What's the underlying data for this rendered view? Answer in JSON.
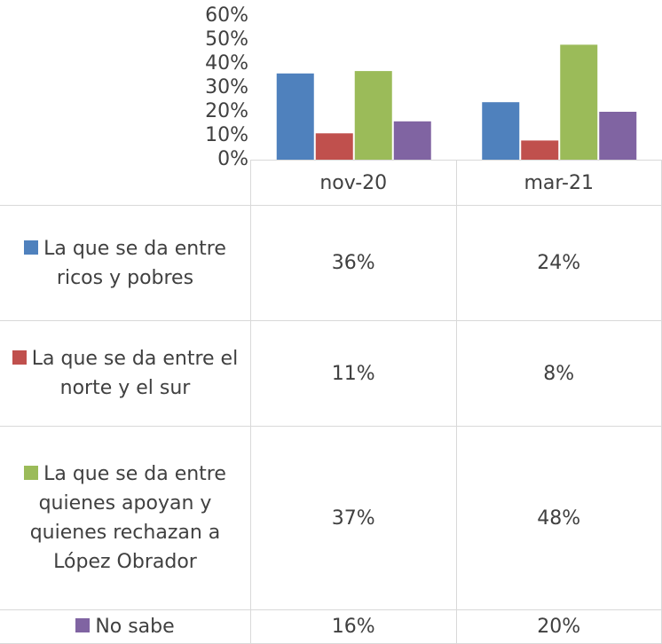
{
  "chart_data": {
    "type": "bar",
    "categories": [
      "nov-20",
      "mar-21"
    ],
    "series": [
      {
        "name": "La que se da entre ricos y pobres",
        "color": "#4f81bd",
        "values": [
          36,
          24
        ],
        "value_labels": [
          "36%",
          "24%"
        ]
      },
      {
        "name": "La que se da entre el norte y el sur",
        "color": "#c0504d",
        "values": [
          11,
          8
        ],
        "value_labels": [
          "11%",
          "8%"
        ]
      },
      {
        "name": "La que se da entre quienes apoyan y quienes rechazan a López Obrador",
        "color": "#9bbb59",
        "values": [
          37,
          48
        ],
        "value_labels": [
          "37%",
          "48%"
        ]
      },
      {
        "name": "No sabe",
        "color": "#8064a2",
        "values": [
          16,
          20
        ],
        "value_labels": [
          "16%",
          "20%"
        ]
      }
    ],
    "ylim": [
      0,
      60
    ],
    "yticks": [
      {
        "value": 0,
        "label": "0%"
      },
      {
        "value": 10,
        "label": "10%"
      },
      {
        "value": 20,
        "label": "20%"
      },
      {
        "value": 30,
        "label": "30%"
      },
      {
        "value": 40,
        "label": "40%"
      },
      {
        "value": 50,
        "label": "50%"
      },
      {
        "value": 60,
        "label": "60%"
      }
    ],
    "data_table": true
  }
}
